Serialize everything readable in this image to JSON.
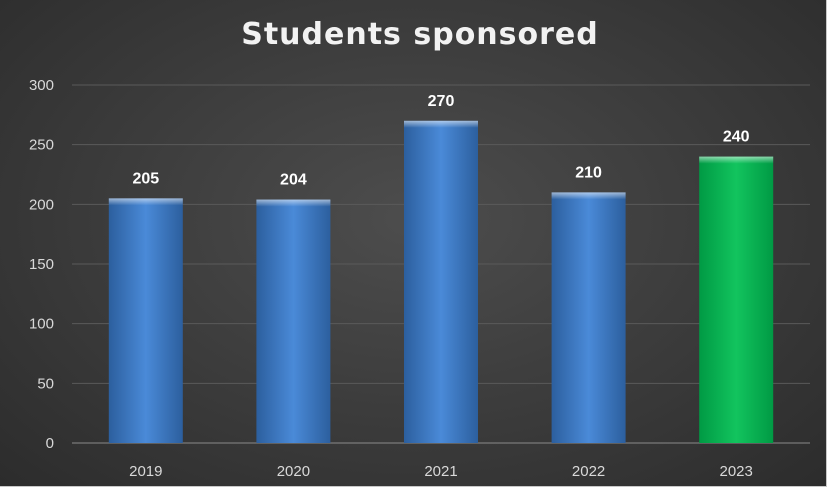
{
  "chart_data": {
    "type": "bar",
    "title": "Students sponsored",
    "categories": [
      "2019",
      "2020",
      "2021",
      "2022",
      "2023"
    ],
    "values": [
      205,
      204,
      270,
      210,
      240
    ],
    "data_labels": [
      "205",
      "204",
      "270",
      "210",
      "240"
    ],
    "y_ticks": [
      "0",
      "50",
      "100",
      "150",
      "200",
      "250",
      "300"
    ],
    "ylim": [
      0,
      300
    ],
    "xlabel": "",
    "ylabel": "",
    "grid": true,
    "legend": "none",
    "colors": {
      "default_bar": "#3f7fd0",
      "highlight_bar": "#00b050",
      "highlight_category": "2023"
    }
  }
}
